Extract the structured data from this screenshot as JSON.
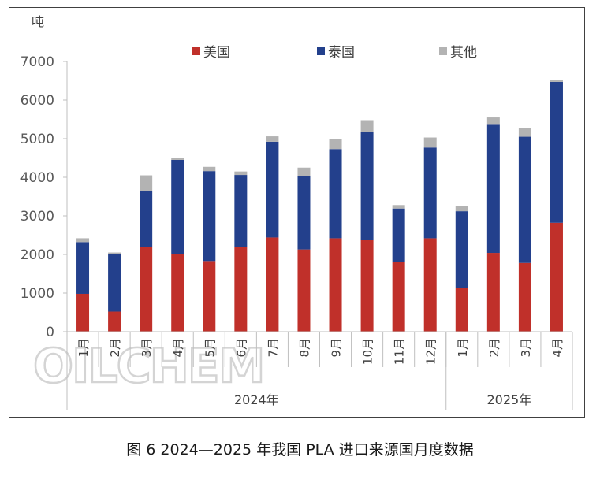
{
  "caption": "图 6 2024—2025 年我国 PLA 进口来源国月度数据",
  "watermark": "OILCHEM",
  "chart_data": {
    "type": "bar",
    "stacked": true,
    "ylabel": "吨",
    "ylim": [
      0,
      7000
    ],
    "yticks": [
      0,
      1000,
      2000,
      3000,
      4000,
      5000,
      6000,
      7000
    ],
    "categories": [
      "1月",
      "2月",
      "3月",
      "4月",
      "5月",
      "6月",
      "7月",
      "8月",
      "9月",
      "10月",
      "11月",
      "12月",
      "1月",
      "2月",
      "3月",
      "4月"
    ],
    "groups": [
      {
        "label": "2024年",
        "count": 12
      },
      {
        "label": "2025年",
        "count": 4
      }
    ],
    "legend_position": "top",
    "series": [
      {
        "name": "美国",
        "color": "#c0302a",
        "values": [
          980,
          520,
          2200,
          2020,
          1830,
          2200,
          2440,
          2130,
          2420,
          2380,
          1810,
          2420,
          1130,
          2040,
          1780,
          2820
        ]
      },
      {
        "name": "泰国",
        "color": "#23408c",
        "values": [
          1340,
          1480,
          1450,
          2430,
          2330,
          1860,
          2480,
          1900,
          2310,
          2800,
          1380,
          2350,
          1990,
          3320,
          3270,
          3650
        ]
      },
      {
        "name": "其他",
        "color": "#b3b3b3",
        "values": [
          100,
          50,
          400,
          60,
          110,
          90,
          140,
          220,
          250,
          300,
          90,
          260,
          130,
          190,
          220,
          60
        ]
      }
    ]
  }
}
